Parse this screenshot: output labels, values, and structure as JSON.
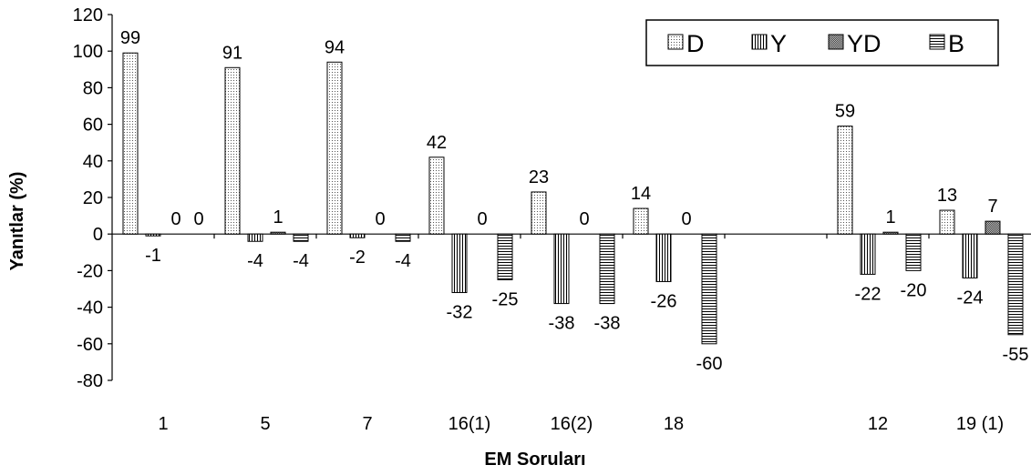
{
  "chart_data": {
    "type": "bar",
    "title": "",
    "xlabel": "EM Soruları",
    "ylabel": "Yanıtlar (%)",
    "ylim": [
      -80,
      120
    ],
    "yticks": [
      "120",
      "100",
      "80",
      "60",
      "40",
      "20",
      "0",
      "-20",
      "-40",
      "-60",
      "-80"
    ],
    "categories": [
      "1",
      "5",
      "7",
      "16(1)",
      "16(2)",
      "18",
      "",
      "12",
      "19 (1)"
    ],
    "legend_position": "top-right",
    "grid": false,
    "series": [
      {
        "name": "D",
        "pattern": "dots",
        "values": [
          99,
          91,
          94,
          42,
          23,
          14,
          null,
          59,
          13
        ]
      },
      {
        "name": "Y",
        "pattern": "vertical",
        "values": [
          -1,
          -4,
          -2,
          -32,
          -38,
          -26,
          null,
          -22,
          -24
        ]
      },
      {
        "name": "YD",
        "pattern": "crosshatch",
        "values": [
          0,
          1,
          0,
          0,
          0,
          0,
          null,
          1,
          7
        ]
      },
      {
        "name": "B",
        "pattern": "horizontal",
        "values": [
          0,
          -4,
          -4,
          -25,
          -38,
          -60,
          null,
          -20,
          -55
        ]
      }
    ],
    "data_labels": [
      [
        "99",
        "-1",
        "0",
        "0"
      ],
      [
        "91",
        "-4",
        "1",
        "-4"
      ],
      [
        "94",
        "-2",
        "0",
        "-4"
      ],
      [
        "42",
        "-32",
        "0",
        "-25"
      ],
      [
        "23",
        "-38",
        "0",
        "-38"
      ],
      [
        "14",
        "-26",
        "0",
        "-60"
      ],
      [
        "",
        "",
        "",
        ""
      ],
      [
        "59",
        "-22",
        "1",
        "-20"
      ],
      [
        "13",
        "-24",
        "7",
        "-55"
      ]
    ]
  }
}
